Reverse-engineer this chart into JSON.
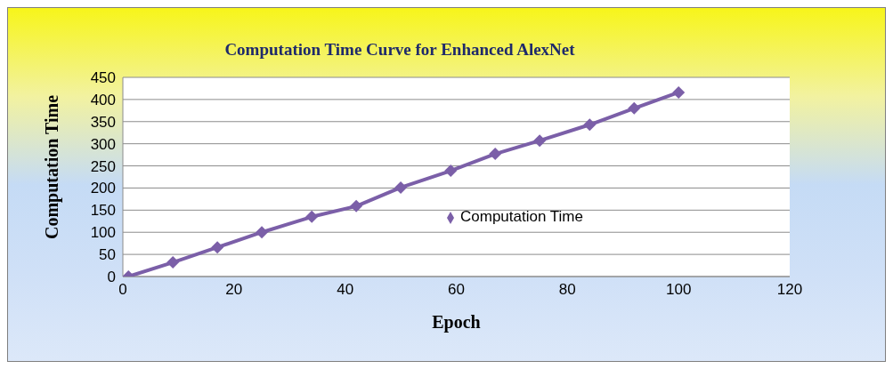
{
  "chart_data": {
    "type": "line",
    "title": "Computation Time Curve for Enhanced AlexNet",
    "xlabel": "Epoch",
    "ylabel": "Computation Time",
    "x": [
      1,
      9,
      17,
      25,
      34,
      42,
      50,
      59,
      67,
      75,
      84,
      92,
      100
    ],
    "series": [
      {
        "name": "Computation Time",
        "color": "#7b5fa8",
        "values": [
          0,
          32,
          66,
          100,
          135,
          159,
          201,
          239,
          277,
          307,
          343,
          380,
          416
        ]
      }
    ],
    "xlim": [
      0,
      120
    ],
    "xticks": [
      0,
      20,
      40,
      60,
      80,
      100,
      120
    ],
    "ylim": [
      0,
      450
    ],
    "yticks": [
      0,
      50,
      100,
      150,
      200,
      250,
      300,
      350,
      400,
      450
    ],
    "grid": "y",
    "legend": "center",
    "marker": "diamond",
    "line_style": "solid"
  }
}
